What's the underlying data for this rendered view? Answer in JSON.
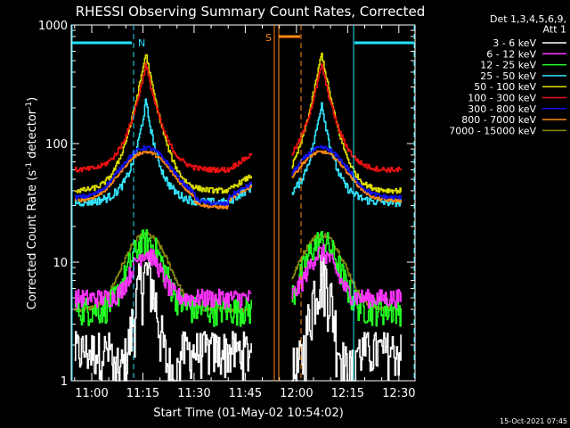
{
  "chart_data": {
    "type": "line",
    "title": "RHESSI Observing Summary Count Rates, Corrected",
    "xlabel": "Start Time (01-May-02 10:54:02)",
    "ylabel_main": "Corrected Count Rate (s",
    "ylabel_sup1": "-1",
    "ylabel_mid": " detector",
    "ylabel_sup2": "-1",
    "ylabel_end": ")",
    "yscale": "log",
    "ylim": [
      1,
      1000
    ],
    "xlim_minutes": [
      654.0,
      1575.0
    ],
    "yticks": [
      {
        "value": 1,
        "label": "1"
      },
      {
        "value": 10,
        "label": "10"
      },
      {
        "value": 100,
        "label": "100"
      },
      {
        "value": 1000,
        "label": "1000"
      }
    ],
    "xticks": [
      {
        "minute": 660,
        "label": "11:00"
      },
      {
        "minute": 675,
        "label": "11:15"
      },
      {
        "minute": 690,
        "label": "11:30"
      },
      {
        "minute": 705,
        "label": "11:45"
      },
      {
        "minute": 720,
        "label": "12:00"
      },
      {
        "minute": 735,
        "label": "12:15"
      },
      {
        "minute": 750,
        "label": "12:30"
      }
    ],
    "legend": {
      "header": [
        "Det 1,3,4,5,6,9,",
        "Att 1"
      ],
      "entries": [
        {
          "label": "3 - 6 keV",
          "color": "#ffffff"
        },
        {
          "label": "6 - 12 keV",
          "color": "#ff33ff"
        },
        {
          "label": "12 - 25 keV",
          "color": "#22ff22"
        },
        {
          "label": "25 - 50 keV",
          "color": "#33e5ff"
        },
        {
          "label": "50 - 100 keV",
          "color": "#dddd00"
        },
        {
          "label": "100 - 300 keV",
          "color": "#ee1111"
        },
        {
          "label": "300 - 800 keV",
          "color": "#1111ee"
        },
        {
          "label": "800 - 7000 keV",
          "color": "#ff8811"
        },
        {
          "label": "7000 - 15000 keV",
          "color": "#888811"
        }
      ]
    },
    "markers": [
      {
        "label": "N",
        "color": "#22e5ff"
      },
      {
        "label": "S",
        "color": "#ff8811"
      }
    ],
    "timestamp": "15-Oct-2021 07:45",
    "series_note": "Two observation intervals separated by a gap (~11:52-11:58)",
    "series": [
      {
        "band": "100 - 300 keV",
        "base": 60,
        "peak": 440
      },
      {
        "band": "50 - 100 keV",
        "base": 40,
        "peak": 560
      },
      {
        "band": "300 - 800 keV",
        "base": 35,
        "peak": 92
      },
      {
        "band": "800 - 7000 keV",
        "base": 33,
        "peak": 85
      },
      {
        "band": "25 - 50 keV",
        "base": 32,
        "peak": 210
      },
      {
        "band": "7000 - 15000 keV",
        "base": 4,
        "peak": 17
      },
      {
        "band": "12 - 25 keV",
        "base": 4,
        "peak": 15
      },
      {
        "band": "6 - 12 keV",
        "base": 5,
        "peak": 12
      },
      {
        "band": "3 - 6 keV",
        "base": 1,
        "peak": 7
      }
    ]
  }
}
